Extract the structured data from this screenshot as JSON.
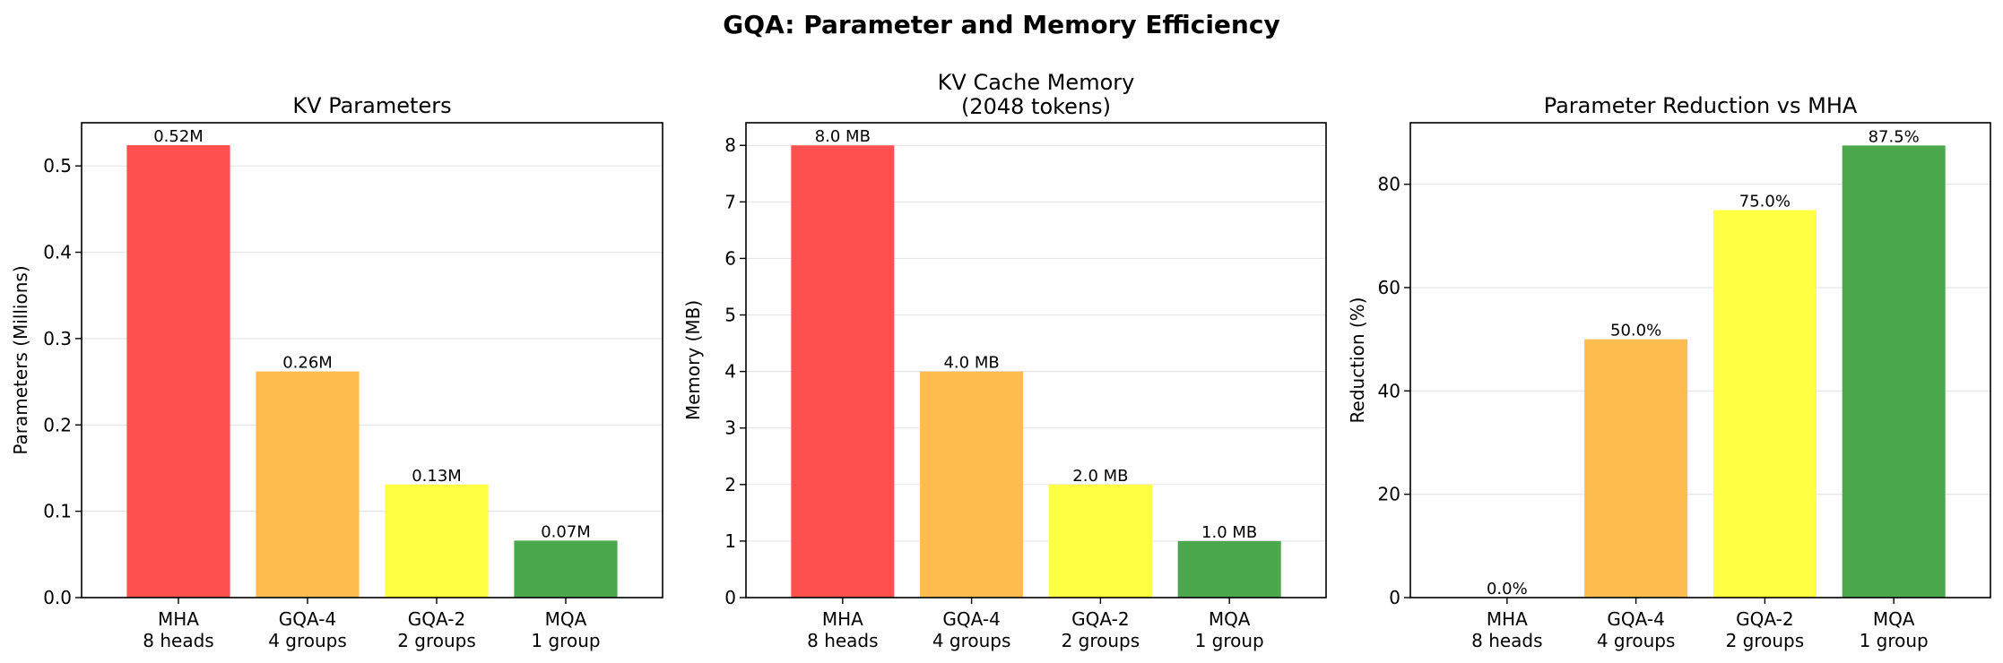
{
  "figure_title": "GQA: Parameter and Memory Efficiency",
  "colors": {
    "bars": [
      "#ff5050",
      "#ffbd50",
      "#ffff44",
      "#4ca84c"
    ],
    "grid": "#e6e6e6",
    "axis": "#000000"
  },
  "chart_data": [
    {
      "type": "bar",
      "title": [
        "KV Parameters"
      ],
      "ylabel": "Parameters (Millions)",
      "categories": [
        [
          "MHA",
          "8 heads"
        ],
        [
          "GQA-4",
          "4 groups"
        ],
        [
          "GQA-2",
          "2 groups"
        ],
        [
          "MQA",
          "1 group"
        ]
      ],
      "values": [
        0.524,
        0.262,
        0.131,
        0.066
      ],
      "data_labels": [
        "0.52M",
        "0.26M",
        "0.13M",
        "0.07M"
      ],
      "ylim": [
        0,
        0.55
      ],
      "yticks": [
        0.0,
        0.1,
        0.2,
        0.3,
        0.4,
        0.5
      ],
      "ytick_labels": [
        "0.0",
        "0.1",
        "0.2",
        "0.3",
        "0.4",
        "0.5"
      ],
      "grid": "y"
    },
    {
      "type": "bar",
      "title": [
        "KV Cache Memory",
        "(2048 tokens)"
      ],
      "ylabel": "Memory (MB)",
      "categories": [
        [
          "MHA",
          "8 heads"
        ],
        [
          "GQA-4",
          "4 groups"
        ],
        [
          "GQA-2",
          "2 groups"
        ],
        [
          "MQA",
          "1 group"
        ]
      ],
      "values": [
        8.0,
        4.0,
        2.0,
        1.0
      ],
      "data_labels": [
        "8.0 MB",
        "4.0 MB",
        "2.0 MB",
        "1.0 MB"
      ],
      "ylim": [
        0,
        8.4
      ],
      "yticks": [
        0,
        1,
        2,
        3,
        4,
        5,
        6,
        7,
        8
      ],
      "ytick_labels": [
        "0",
        "1",
        "2",
        "3",
        "4",
        "5",
        "6",
        "7",
        "8"
      ],
      "grid": "y"
    },
    {
      "type": "bar",
      "title": [
        "Parameter Reduction vs MHA"
      ],
      "ylabel": "Reduction (%)",
      "categories": [
        [
          "MHA",
          "8 heads"
        ],
        [
          "GQA-4",
          "4 groups"
        ],
        [
          "GQA-2",
          "2 groups"
        ],
        [
          "MQA",
          "1 group"
        ]
      ],
      "values": [
        0.0,
        50.0,
        75.0,
        87.5
      ],
      "data_labels": [
        "0.0%",
        "50.0%",
        "75.0%",
        "87.5%"
      ],
      "ylim": [
        0,
        91.9
      ],
      "yticks": [
        0,
        20,
        40,
        60,
        80
      ],
      "ytick_labels": [
        "0",
        "20",
        "40",
        "60",
        "80"
      ],
      "grid": "y"
    }
  ]
}
